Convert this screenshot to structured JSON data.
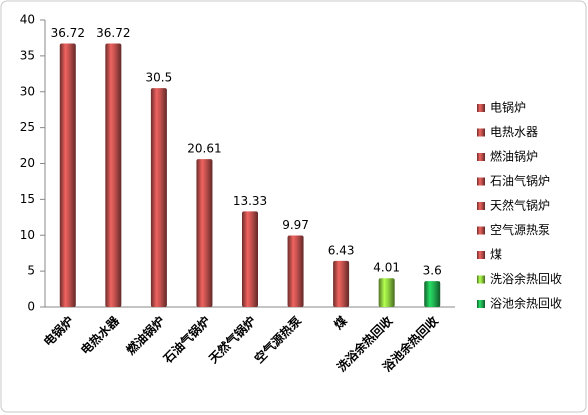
{
  "chart_data": {
    "type": "bar",
    "categories": [
      "电锅炉",
      "电热水器",
      "燃油锅炉",
      "石油气锅炉",
      "天然气锅炉",
      "空气源热泵",
      "煤",
      "洗浴余热回收",
      "浴池余热回收"
    ],
    "values": [
      36.72,
      36.72,
      30.5,
      20.61,
      13.33,
      9.97,
      6.43,
      4.01,
      3.6
    ],
    "colors": [
      "#c0504d",
      "#c0504d",
      "#c0504d",
      "#c0504d",
      "#c0504d",
      "#c0504d",
      "#c0504d",
      "#8fd13f",
      "#20b050"
    ],
    "ylim": [
      0,
      40
    ],
    "yticks": [
      0,
      5,
      10,
      15,
      20,
      25,
      30,
      35,
      40
    ],
    "grid": false,
    "legend": "right"
  }
}
